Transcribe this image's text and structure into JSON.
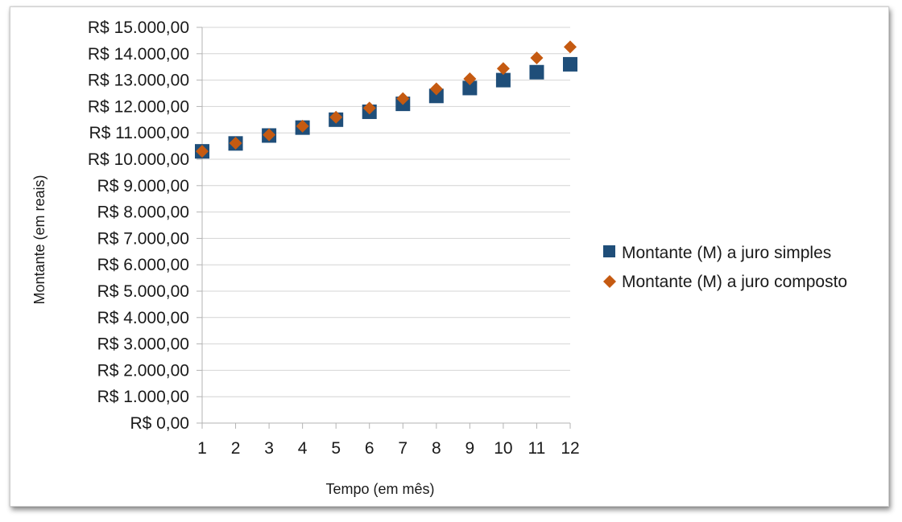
{
  "chart_data": {
    "type": "scatter",
    "title": "",
    "xlabel": "Tempo (em mês)",
    "ylabel": "Montante (em reais)",
    "x": [
      1,
      2,
      3,
      4,
      5,
      6,
      7,
      8,
      9,
      10,
      11,
      12
    ],
    "xticks": [
      "1",
      "2",
      "3",
      "4",
      "5",
      "6",
      "7",
      "8",
      "9",
      "10",
      "11",
      "12"
    ],
    "ylim": [
      0,
      15000
    ],
    "yticks": [
      0,
      1000,
      2000,
      3000,
      4000,
      5000,
      6000,
      7000,
      8000,
      9000,
      10000,
      11000,
      12000,
      13000,
      14000,
      15000
    ],
    "ytick_labels": [
      "R$ 0,00",
      "R$ 1.000,00",
      "R$ 2.000,00",
      "R$ 3.000,00",
      "R$ 4.000,00",
      "R$ 5.000,00",
      "R$ 6.000,00",
      "R$ 7.000,00",
      "R$ 8.000,00",
      "R$ 9.000,00",
      "R$ 10.000,00",
      "R$ 11.000,00",
      "R$ 12.000,00",
      "R$ 13.000,00",
      "R$ 14.000,00",
      "R$ 15.000,00"
    ],
    "grid": true,
    "legend_position": "right",
    "series": [
      {
        "name": "Montante (M) a juro simples",
        "marker": "square",
        "color": "#1f4e79",
        "values": [
          10300,
          10600,
          10900,
          11200,
          11500,
          11800,
          12100,
          12400,
          12700,
          13000,
          13300,
          13600
        ]
      },
      {
        "name": "Montante (M) a juro composto",
        "marker": "diamond",
        "color": "#c55a11",
        "values": [
          10300,
          10609,
          10927,
          11255,
          11593,
          11941,
          12299,
          12668,
          13048,
          13439,
          13842,
          14258
        ]
      }
    ]
  }
}
